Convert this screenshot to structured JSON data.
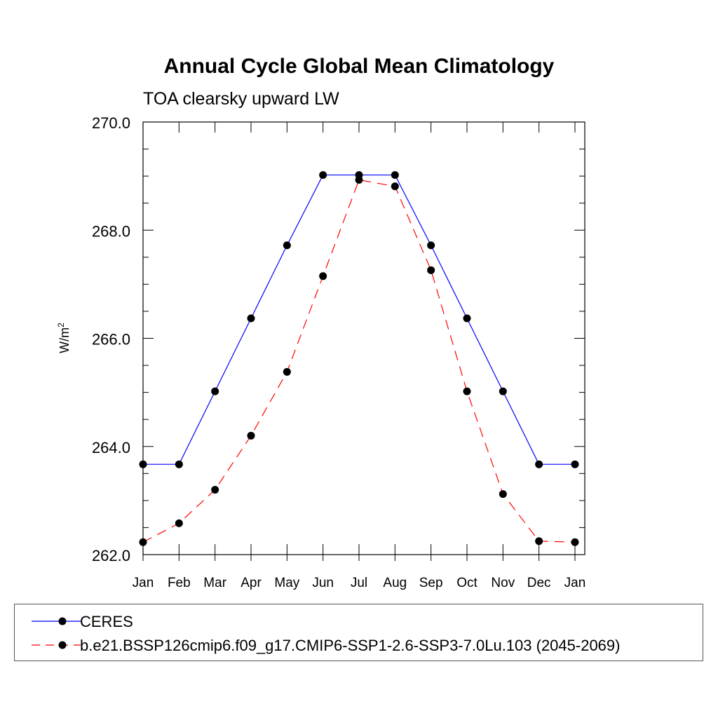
{
  "chart_data": {
    "type": "line",
    "title": "Annual Cycle Global Mean Climatology",
    "subtitle": "TOA clearsky upward LW",
    "xlabel": "",
    "ylabel": "W/m",
    "ylabel_superscript": "2",
    "categories": [
      "Jan",
      "Feb",
      "Mar",
      "Apr",
      "May",
      "Jun",
      "Jul",
      "Aug",
      "Sep",
      "Oct",
      "Nov",
      "Dec",
      "Jan"
    ],
    "ylim": [
      262.0,
      270.0
    ],
    "yticks": [
      "262.0",
      "264.0",
      "266.0",
      "268.0",
      "270.0"
    ],
    "ytick_values": [
      262,
      264,
      266,
      268,
      270
    ],
    "series": [
      {
        "name": "CERES",
        "color": "#0000ff",
        "dash": "solid",
        "marker": "circle",
        "values": [
          263.67,
          263.67,
          265.02,
          266.37,
          267.72,
          269.02,
          269.02,
          269.02,
          267.72,
          266.37,
          265.02,
          263.67,
          263.67
        ]
      },
      {
        "name": "b.e21.BSSP126cmip6.f09_g17.CMIP6-SSP1-2.6-SSP3-7.0Lu.103 (2045-2069)",
        "color": "#ff0000",
        "dash": "dashed",
        "marker": "circle",
        "values": [
          262.23,
          262.58,
          263.2,
          264.2,
          265.38,
          267.15,
          268.93,
          268.81,
          267.26,
          265.02,
          263.12,
          262.25,
          262.23
        ]
      }
    ],
    "legend_position": "bottom"
  }
}
